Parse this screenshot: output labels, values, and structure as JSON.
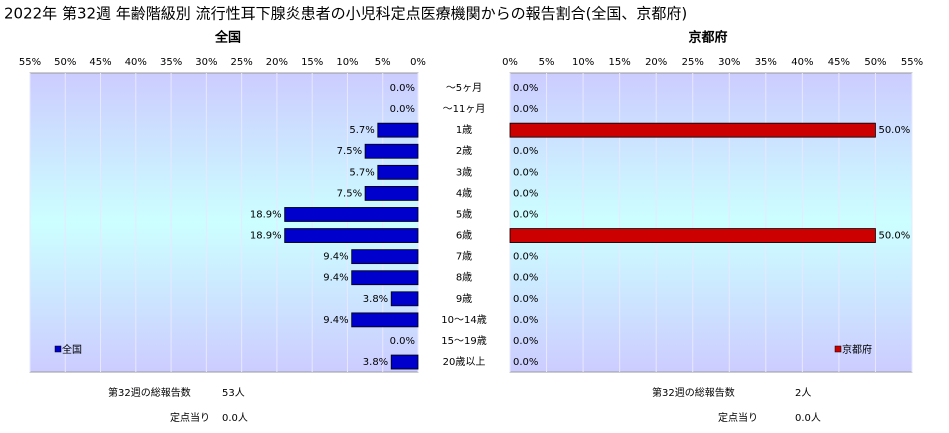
{
  "title": "2022年 第32週 年齢階級別 流行性耳下腺炎患者の小児科定点医療機関からの報告割合(全国、京都府)",
  "categories": [
    "～5ヶ月",
    "～11ヶ月",
    "1歳",
    "2歳",
    "3歳",
    "4歳",
    "5歳",
    "6歳",
    "7歳",
    "8歳",
    "9歳",
    "10～14歳",
    "15～19歳",
    "20歳以上"
  ],
  "chart_data": [
    {
      "type": "bar",
      "orientation": "horizontal",
      "title": "全国",
      "xlim": [
        55,
        0
      ],
      "xticks": [
        {
          "value": 55,
          "label": "55%"
        },
        {
          "value": 50,
          "label": "50%"
        },
        {
          "value": 45,
          "label": "45%"
        },
        {
          "value": 40,
          "label": "40%"
        },
        {
          "value": 35,
          "label": "35%"
        },
        {
          "value": 30,
          "label": "30%"
        },
        {
          "value": 25,
          "label": "25%"
        },
        {
          "value": 20,
          "label": "20%"
        },
        {
          "value": 15,
          "label": "15%"
        },
        {
          "value": 10,
          "label": "10%"
        },
        {
          "value": 5,
          "label": "5%"
        },
        {
          "value": 0,
          "label": "0%"
        }
      ],
      "grid": true,
      "legend": "lower-left",
      "series": [
        {
          "name": "全国",
          "color": "#0000cc",
          "values": [
            0,
            0,
            5.7,
            7.5,
            5.7,
            7.5,
            18.9,
            18.9,
            9.4,
            9.4,
            3.8,
            9.4,
            0,
            3.8
          ],
          "value_labels": [
            "0.0%",
            "0.0%",
            "5.7%",
            "7.5%",
            "5.7%",
            "7.5%",
            "18.9%",
            "18.9%",
            "9.4%",
            "9.4%",
            "3.8%",
            "9.4%",
            "0.0%",
            "3.8%"
          ]
        }
      ],
      "summary": [
        {
          "label": "第32週の総報告数",
          "value": "53人"
        },
        {
          "label": "定点当り",
          "value": "0.0人"
        }
      ]
    },
    {
      "type": "bar",
      "orientation": "horizontal",
      "title": "京都府",
      "xlim": [
        0,
        55
      ],
      "xticks": [
        {
          "value": 0,
          "label": "0%"
        },
        {
          "value": 5,
          "label": "5%"
        },
        {
          "value": 10,
          "label": "10%"
        },
        {
          "value": 15,
          "label": "15%"
        },
        {
          "value": 20,
          "label": "20%"
        },
        {
          "value": 25,
          "label": "25%"
        },
        {
          "value": 30,
          "label": "30%"
        },
        {
          "value": 35,
          "label": "35%"
        },
        {
          "value": 40,
          "label": "40%"
        },
        {
          "value": 45,
          "label": "45%"
        },
        {
          "value": 50,
          "label": "50%"
        },
        {
          "value": 55,
          "label": "55%"
        }
      ],
      "grid": true,
      "legend": "lower-right",
      "series": [
        {
          "name": "京都府",
          "color": "#cc0000",
          "values": [
            0,
            0,
            50,
            0,
            0,
            0,
            0,
            50,
            0,
            0,
            0,
            0,
            0,
            0
          ],
          "value_labels": [
            "0.0%",
            "0.0%",
            "50.0%",
            "0.0%",
            "0.0%",
            "0.0%",
            "0.0%",
            "50.0%",
            "0.0%",
            "0.0%",
            "0.0%",
            "0.0%",
            "0.0%",
            "0.0%"
          ]
        }
      ],
      "summary": [
        {
          "label": "第32週の総報告数",
          "value": "2人"
        },
        {
          "label": "定点当り",
          "value": "0.0人"
        }
      ]
    }
  ]
}
